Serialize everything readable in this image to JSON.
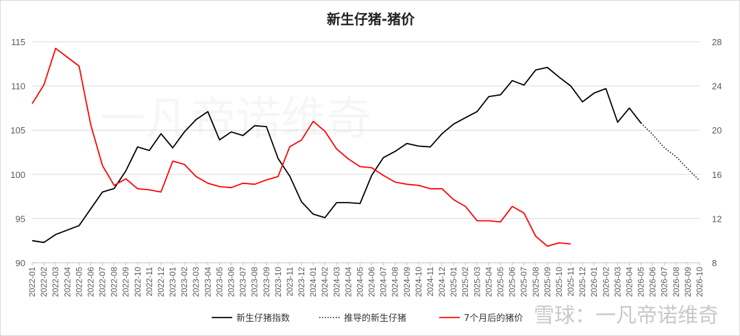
{
  "watermark_center": "一凡帝诺维奇",
  "watermark_corner": "雪球：一凡帝诺维奇",
  "chart_data": {
    "type": "line",
    "title": "新生仔猪-猪价",
    "categories": [
      "2022-01",
      "2022-02",
      "2022-03",
      "2022-04",
      "2022-05",
      "2022-06",
      "2022-07",
      "2022-08",
      "2022-09",
      "2022-10",
      "2022-11",
      "2022-12",
      "2023-01",
      "2023-02",
      "2023-03",
      "2023-04",
      "2023-05",
      "2023-06",
      "2023-07",
      "2023-08",
      "2023-09",
      "2023-10",
      "2023-11",
      "2023-12",
      "2024-01",
      "2024-02",
      "2024-03",
      "2024-04",
      "2024-05",
      "2024-06",
      "2024-07",
      "2024-08",
      "2024-09",
      "2024-10",
      "2024-11",
      "2024-12",
      "2025-01",
      "2025-02",
      "2025-03",
      "2025-04",
      "2025-05",
      "2025-06",
      "2025-07",
      "2025-08",
      "2025-09",
      "2025-10",
      "2025-11",
      "2025-12",
      "2026-01",
      "2026-02",
      "2026-03",
      "2026-04",
      "2026-05",
      "2026-06",
      "2026-07",
      "2026-08",
      "2026-09",
      "2026-10"
    ],
    "y_left": {
      "min": 90,
      "max": 115,
      "ticks": [
        90,
        95,
        100,
        105,
        110,
        115
      ]
    },
    "y_right": {
      "min": 8,
      "max": 28,
      "ticks": [
        8,
        12,
        16,
        20,
        24,
        28
      ]
    },
    "grid": true,
    "legend_position": "bottom",
    "series": [
      {
        "name": "新生仔猪指数",
        "axis": "left",
        "color": "#000000",
        "style": "solid",
        "values": [
          92.5,
          92.3,
          93.2,
          93.7,
          94.2,
          96.1,
          98.0,
          98.4,
          100.4,
          103.1,
          102.7,
          104.6,
          103.0,
          104.8,
          106.2,
          107.1,
          103.9,
          104.8,
          104.4,
          105.5,
          105.4,
          101.8,
          99.8,
          96.9,
          95.5,
          95.1,
          96.8,
          96.8,
          96.7,
          99.9,
          101.9,
          102.6,
          103.5,
          103.2,
          103.1,
          104.6,
          105.7,
          106.4,
          107.1,
          108.8,
          109.0,
          110.6,
          110.1,
          111.8,
          112.1,
          111.0,
          110.0,
          108.2,
          109.2,
          109.7,
          105.9,
          107.5,
          105.8,
          null,
          null,
          null,
          null,
          null
        ]
      },
      {
        "name": "推导的新生仔猪",
        "axis": "left",
        "color": "#000000",
        "style": "dotted",
        "values": [
          null,
          null,
          null,
          null,
          null,
          null,
          null,
          null,
          null,
          null,
          null,
          null,
          null,
          null,
          null,
          null,
          null,
          null,
          null,
          null,
          null,
          null,
          null,
          null,
          null,
          null,
          null,
          null,
          null,
          null,
          null,
          null,
          null,
          null,
          null,
          null,
          null,
          null,
          null,
          null,
          null,
          null,
          null,
          null,
          null,
          null,
          null,
          null,
          null,
          null,
          null,
          null,
          105.8,
          104.5,
          103.0,
          102.0,
          100.6,
          99.3
        ]
      },
      {
        "name": "7个月后的猪价",
        "axis": "right",
        "color": "#ff0000",
        "style": "solid",
        "values": [
          22.4,
          24.1,
          27.4,
          26.6,
          25.8,
          20.5,
          16.8,
          15.0,
          15.6,
          14.7,
          14.6,
          14.4,
          17.2,
          16.9,
          15.8,
          15.2,
          14.9,
          14.8,
          15.2,
          15.1,
          15.5,
          15.8,
          18.5,
          19.1,
          20.8,
          19.9,
          18.3,
          17.4,
          16.7,
          16.6,
          15.9,
          15.3,
          15.1,
          15.0,
          14.7,
          14.7,
          13.7,
          13.1,
          11.8,
          11.8,
          11.7,
          13.1,
          12.5,
          10.4,
          9.5,
          9.8,
          9.7,
          null,
          null,
          null,
          null,
          null,
          null,
          null,
          null,
          null,
          null,
          null
        ]
      }
    ]
  }
}
